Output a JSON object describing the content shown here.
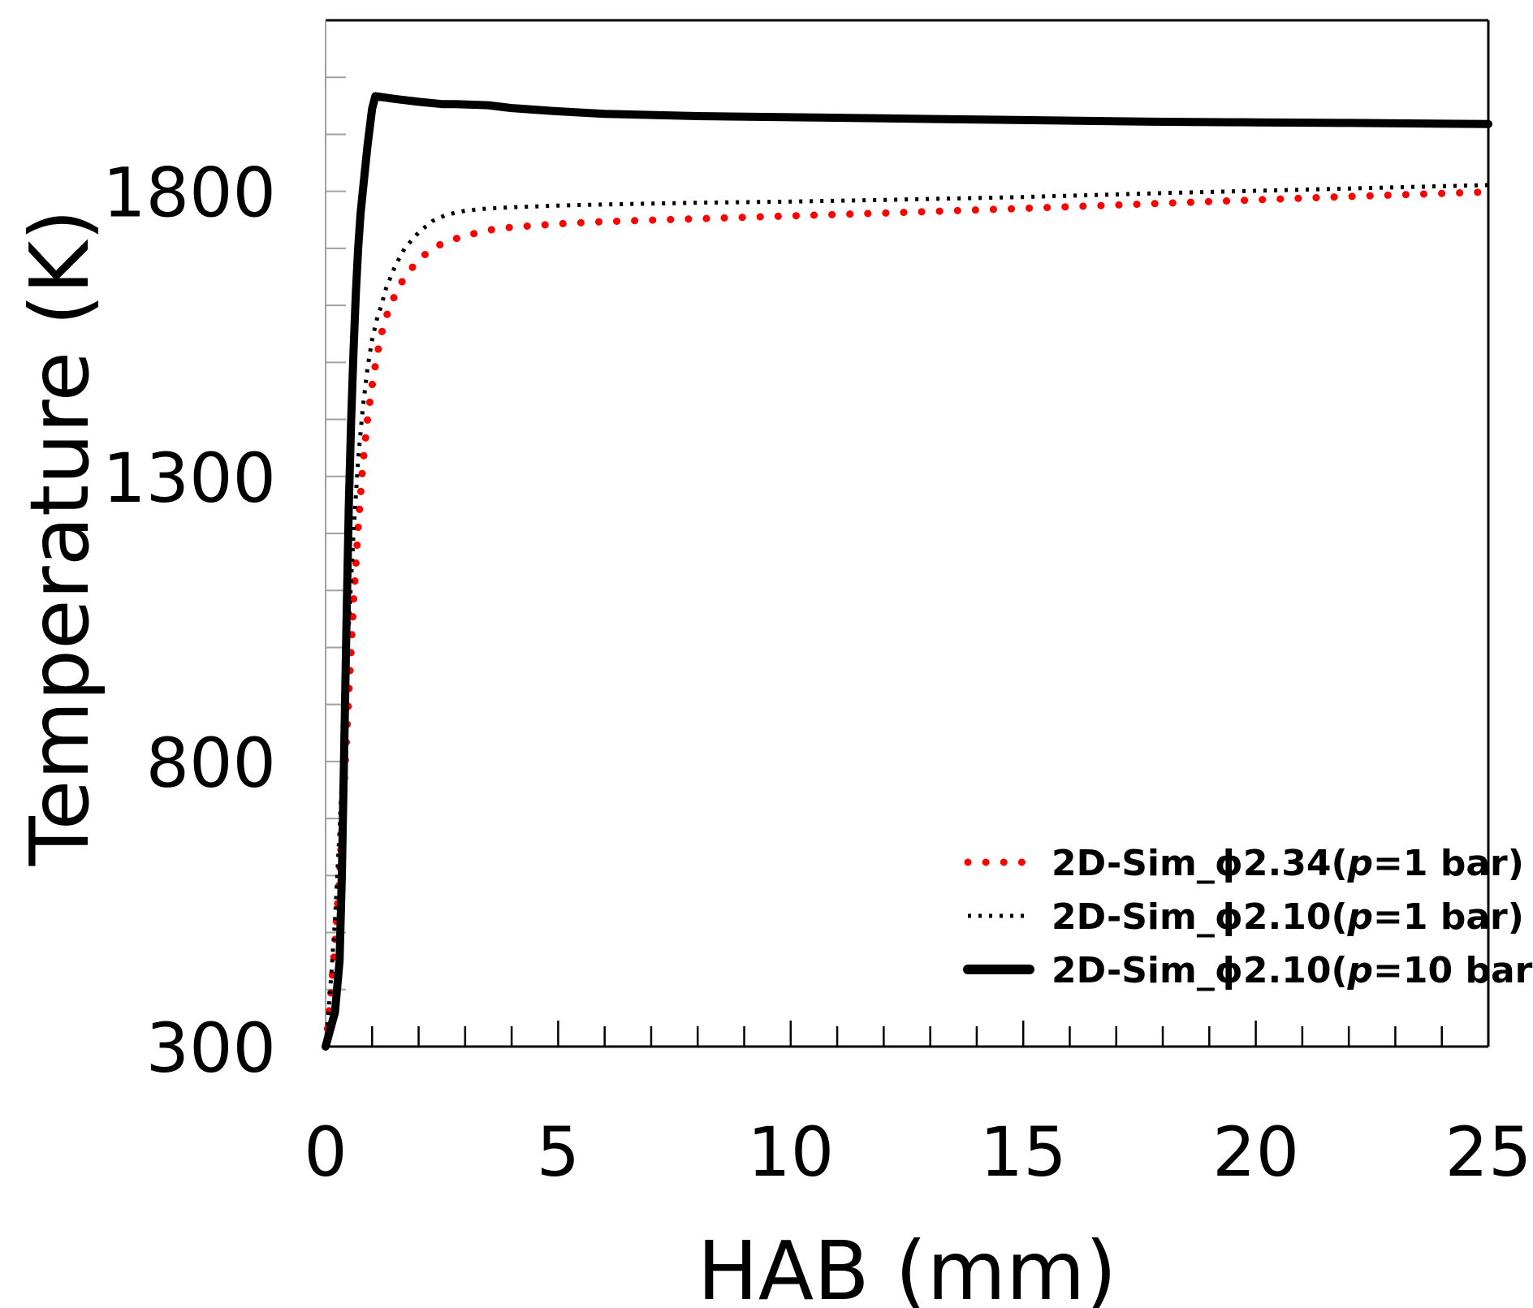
{
  "chart_data": {
    "type": "line",
    "title": "",
    "xlabel": "HAB (mm)",
    "ylabel": "Temperature (K)",
    "xlim": [
      0,
      25
    ],
    "ylim": [
      300,
      2100
    ],
    "x_ticks": [
      0,
      5,
      10,
      15,
      20,
      25
    ],
    "x_tick_labels": [
      "0",
      "5",
      "10",
      "15",
      "20",
      "25"
    ],
    "x_minor_tick_step": 1,
    "y_ticks": [
      300,
      800,
      1300,
      1800
    ],
    "y_tick_labels": [
      "300",
      "800",
      "1300",
      "1800"
    ],
    "y_minor_tick_step": 100,
    "grid": false,
    "legend_position": "lower right",
    "series": [
      {
        "name": "2D-Sim_ϕ2.34(p=1 bar)",
        "label_parts": [
          "2D-Sim_ϕ2.34(",
          "p",
          "=1 bar)"
        ],
        "color": "#ff0000",
        "style": "dotted-round",
        "x": [
          0,
          0.1,
          0.2,
          0.3,
          0.4,
          0.5,
          0.6,
          0.7,
          0.8,
          0.9,
          1.0,
          1.1,
          1.2,
          1.3,
          1.4,
          1.5,
          1.7,
          2.0,
          2.3,
          2.6,
          3.0,
          3.5,
          4.0,
          5.0,
          6.0,
          8.0,
          10.0,
          12.0,
          15.0,
          18.0,
          20.0,
          22.0,
          25.0
        ],
        "y": [
          300,
          380,
          480,
          600,
          760,
          920,
          1080,
          1210,
          1320,
          1400,
          1460,
          1510,
          1550,
          1580,
          1600,
          1620,
          1650,
          1680,
          1700,
          1712,
          1722,
          1732,
          1737,
          1743,
          1747,
          1752,
          1757,
          1762,
          1770,
          1779,
          1785,
          1791,
          1799
        ]
      },
      {
        "name": "2D-Sim_ϕ2.10(p=1 bar)",
        "label_parts": [
          "2D-Sim_ϕ2.10(",
          "p",
          "=1 bar)"
        ],
        "color": "#000000",
        "style": "dotted-small",
        "x": [
          0,
          0.1,
          0.2,
          0.3,
          0.4,
          0.5,
          0.6,
          0.7,
          0.8,
          0.9,
          1.0,
          1.1,
          1.2,
          1.3,
          1.5,
          1.7,
          2.0,
          2.3,
          2.6,
          3.0,
          3.5,
          4.0,
          5.0,
          6.0,
          8.0,
          10.0,
          12.0,
          15.0,
          18.0,
          20.0,
          22.0,
          25.0
        ],
        "y": [
          300,
          400,
          520,
          680,
          860,
          1040,
          1200,
          1330,
          1420,
          1490,
          1540,
          1575,
          1600,
          1630,
          1670,
          1700,
          1728,
          1748,
          1759,
          1766,
          1770,
          1772,
          1775,
          1777,
          1780,
          1782,
          1785,
          1790,
          1797,
          1801,
          1805,
          1811
        ]
      },
      {
        "name": "2D-Sim_ϕ2.10(p=10 bar)",
        "label_parts": [
          "2D-Sim_ϕ2.10(",
          "p",
          "=10 bar)"
        ],
        "color": "#000000",
        "style": "solid-thick",
        "x": [
          0,
          0.1,
          0.2,
          0.3,
          0.35,
          0.4,
          0.45,
          0.5,
          0.55,
          0.6,
          0.65,
          0.7,
          0.75,
          0.8,
          0.9,
          1.0,
          1.07,
          1.5,
          2.0,
          2.5,
          2.8,
          3.5,
          4.0,
          4.9,
          6.0,
          8.0,
          10.0,
          12.0,
          15.0,
          18.0,
          20.0,
          22.0,
          25.0
        ],
        "y": [
          300,
          330,
          360,
          450,
          600,
          820,
          1050,
          1250,
          1400,
          1520,
          1620,
          1700,
          1760,
          1800,
          1880,
          1945,
          1967,
          1962,
          1957,
          1953,
          1953,
          1951,
          1946,
          1941,
          1936,
          1932,
          1930,
          1928,
          1925,
          1922,
          1921,
          1920,
          1918
        ]
      }
    ]
  },
  "page": {
    "x_axis_title": "HAB (mm)",
    "y_axis_title": "Temperature (K)"
  }
}
